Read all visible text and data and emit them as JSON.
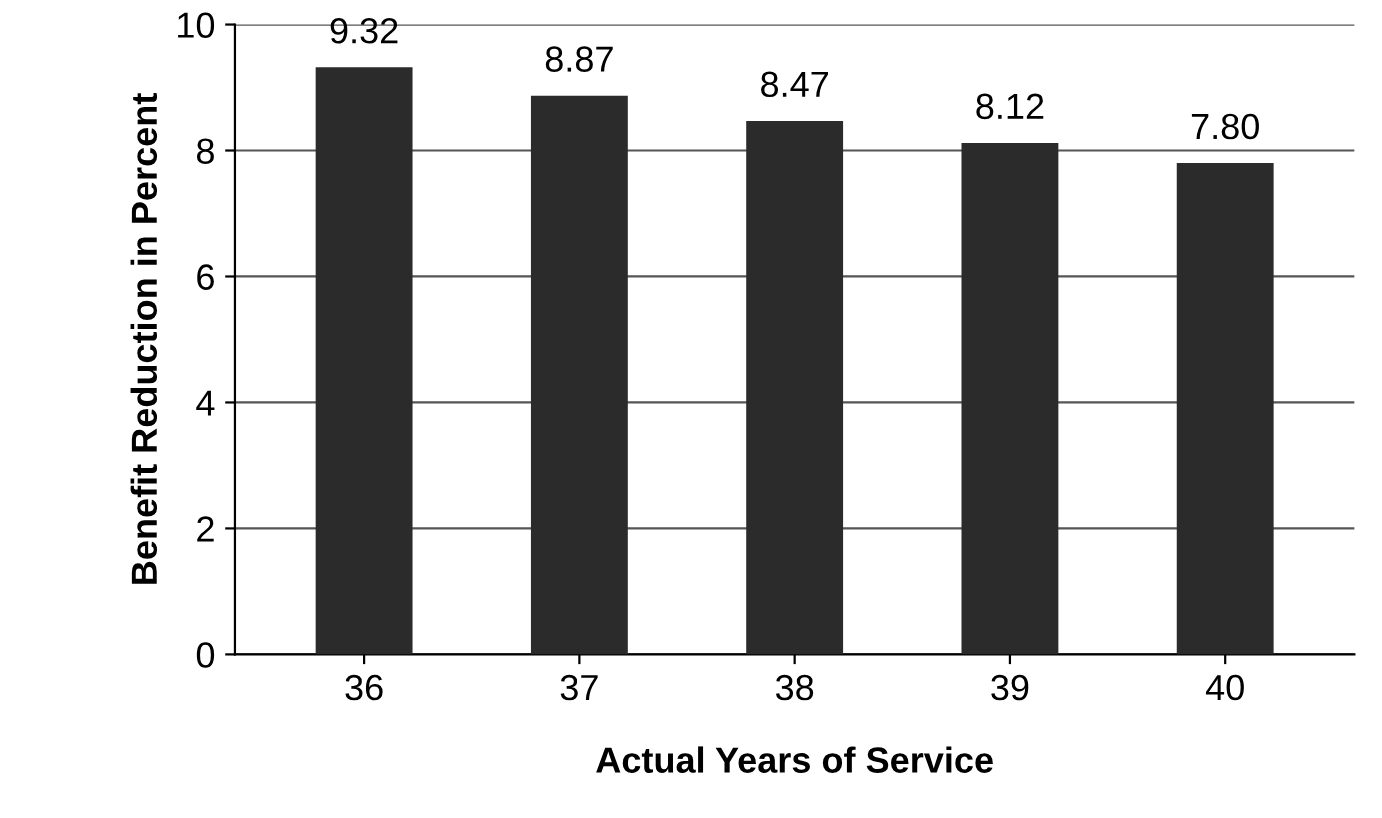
{
  "chart_data": {
    "type": "bar",
    "xlabel": "Actual Years of Service",
    "ylabel": "Benefit Reduction in Percent",
    "categories": [
      "36",
      "37",
      "38",
      "39",
      "40"
    ],
    "values": [
      9.32,
      8.87,
      8.47,
      8.12,
      7.8
    ],
    "value_labels": [
      "9.32",
      "8.87",
      "8.47",
      "8.12",
      "7.80"
    ],
    "color": "#2b2b2b",
    "ylim": [
      0,
      10
    ],
    "yticks": [
      0,
      2,
      4,
      6,
      8,
      10
    ],
    "grid": "y"
  }
}
